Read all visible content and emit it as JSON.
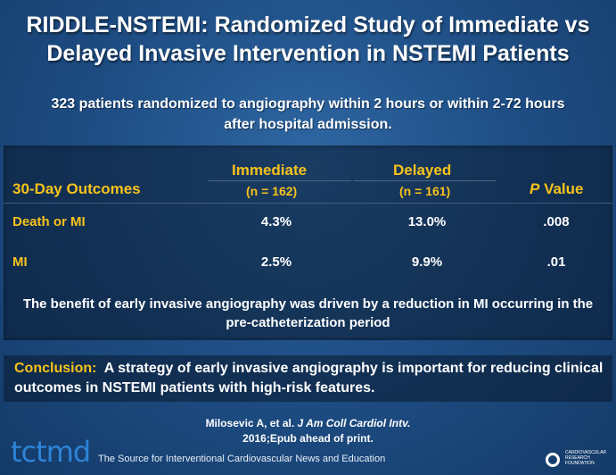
{
  "title": {
    "line1": "RIDDLE-NSTEMI: Randomized Study of Immediate vs",
    "line2": "Delayed Invasive Intervention in NSTEMI Patients"
  },
  "subtitle": "323 patients randomized to angiography within 2 hours or within 2-72 hours after hospital admission.",
  "table": {
    "col_outcomes": "30-Day Outcomes",
    "col_immediate": "Immediate",
    "col_immediate_n": "(n = 162)",
    "col_delayed": "Delayed",
    "col_delayed_n": "(n = 161)",
    "col_p_italic": "P",
    "col_p_rest": " Value",
    "rows": [
      {
        "label": "Death or MI",
        "immediate": "4.3%",
        "delayed": "13.0%",
        "p": ".008"
      },
      {
        "label": "MI",
        "immediate": "2.5%",
        "delayed": "9.9%",
        "p": ".01"
      }
    ],
    "note": "The benefit of early invasive angiography was driven by a reduction in MI occurring in the pre-catheterization period"
  },
  "conclusion": {
    "label": "Conclusion:",
    "text": "  A strategy of early invasive angiography is important for reducing clinical outcomes in NSTEMI patients with high-risk features."
  },
  "citation": {
    "authors": "Milosevic A, et al.",
    "journal": "J Am Coll Cardiol Intv.",
    "line2": "2016;Epub ahead of print."
  },
  "footer": {
    "logo": "tctmd",
    "tagline": "The Source for Interventional Cardiovascular News and Education",
    "crf_text": "CARDIOVASCULAR RESEARCH FOUNDATION"
  },
  "colors": {
    "accent": "#f7c21b",
    "background": "#1f4f86",
    "logo": "#2d84d6"
  }
}
